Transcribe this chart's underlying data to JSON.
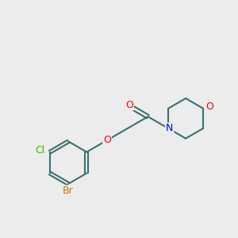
{
  "background_color": "#ececec",
  "bond_color": "#3a7070",
  "bond_width": 1.5,
  "atom_colors": {
    "O": "#ff0000",
    "N": "#0000cc",
    "Cl": "#33bb00",
    "Br": "#cc7700"
  },
  "figsize": [
    3.0,
    3.0
  ],
  "dpi": 100,
  "xlim": [
    0,
    10
  ],
  "ylim": [
    0,
    10
  ]
}
